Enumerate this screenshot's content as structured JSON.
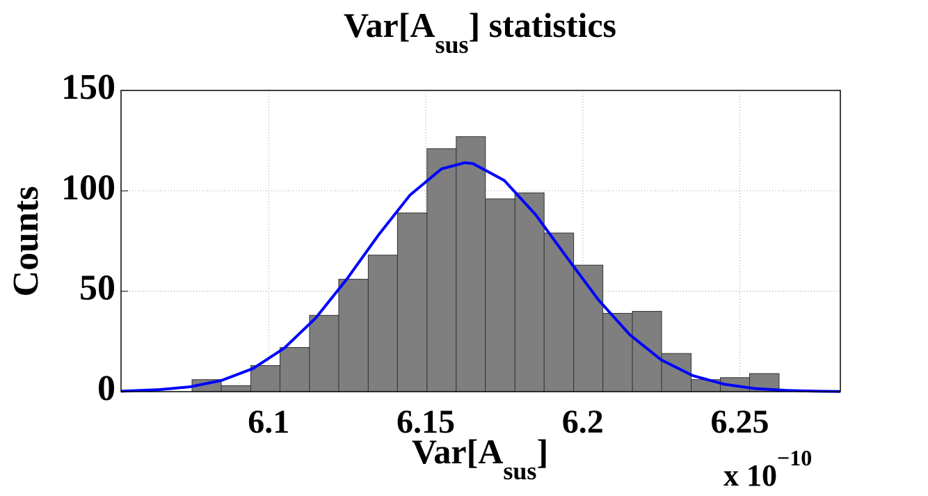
{
  "chart_data": {
    "type": "histogram",
    "title": {
      "main": "Var[A",
      "sub": "sus",
      "rest": "] statistics"
    },
    "xlabel": {
      "main": "Var[A",
      "sub": "sus",
      "rest": "]"
    },
    "ylabel": "Counts",
    "x_exponent": {
      "base": "x 10",
      "power": "−10"
    },
    "bins": [
      6.0756,
      6.0849,
      6.0943,
      6.1036,
      6.113,
      6.1223,
      6.1317,
      6.141,
      6.1504,
      6.1597,
      6.169,
      6.1784,
      6.1877,
      6.1971,
      6.2064,
      6.2158,
      6.2251,
      6.2345,
      6.2438,
      6.2531,
      6.2625
    ],
    "values": [
      6,
      3,
      13,
      22,
      38,
      56,
      68,
      89,
      121,
      127,
      96,
      99,
      79,
      63,
      39,
      40,
      19,
      6,
      7,
      9
    ],
    "color": "#7f7f7f",
    "fit": {
      "color": "#0000ff",
      "x": [
        6.053,
        6.065,
        6.075,
        6.085,
        6.095,
        6.105,
        6.115,
        6.125,
        6.135,
        6.145,
        6.155,
        6.1624,
        6.165,
        6.175,
        6.185,
        6.195,
        6.205,
        6.215,
        6.225,
        6.235,
        6.245,
        6.255,
        6.265,
        6.275,
        6.282
      ],
      "values": [
        0.2,
        1.0,
        2.4,
        5.6,
        11.5,
        21.7,
        36.7,
        56.3,
        78.1,
        97.9,
        110.9,
        114,
        113.6,
        105.2,
        88.1,
        66.7,
        45.7,
        28.3,
        15.8,
        8.0,
        3.7,
        1.5,
        0.6,
        0.2,
        0.1
      ]
    },
    "xlim": [
      6.053,
      6.282
    ],
    "xticks": [
      6.1,
      6.15,
      6.2,
      6.25
    ],
    "ylim": [
      0,
      150
    ],
    "yticks": [
      0,
      50,
      100,
      150
    ],
    "grid": true
  }
}
